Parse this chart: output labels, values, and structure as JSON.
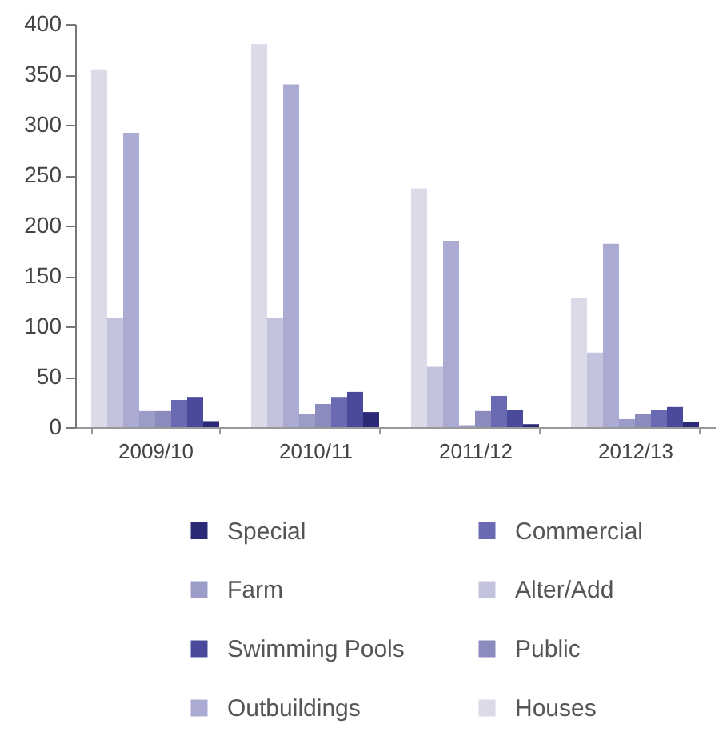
{
  "chart_data": {
    "type": "bar",
    "categories": [
      "2009/10",
      "2010/11",
      "2011/12",
      "2012/13"
    ],
    "series": [
      {
        "name": "Houses",
        "color": "#dadae9",
        "values": [
          355,
          380,
          237,
          128
        ]
      },
      {
        "name": "Alter/Add",
        "color": "#c3c3de",
        "values": [
          108,
          108,
          60,
          74
        ]
      },
      {
        "name": "Outbuildings",
        "color": "#aaaad2",
        "values": [
          292,
          340,
          185,
          182
        ]
      },
      {
        "name": "Farm",
        "color": "#9c9cc9",
        "values": [
          16,
          13,
          2,
          8
        ]
      },
      {
        "name": "Public",
        "color": "#8b8bbd",
        "values": [
          16,
          23,
          16,
          13
        ]
      },
      {
        "name": "Commercial",
        "color": "#6a6ab2",
        "values": [
          27,
          30,
          31,
          17
        ]
      },
      {
        "name": "Swimming Pools",
        "color": "#4a4a9c",
        "values": [
          30,
          35,
          17,
          20
        ]
      },
      {
        "name": "Special",
        "color": "#2a2a76",
        "values": [
          6,
          15,
          3,
          5
        ]
      }
    ],
    "ylim": [
      0,
      400
    ],
    "yticks": [
      0,
      50,
      100,
      150,
      200,
      250,
      300,
      350,
      400
    ],
    "legend": "bottom"
  }
}
